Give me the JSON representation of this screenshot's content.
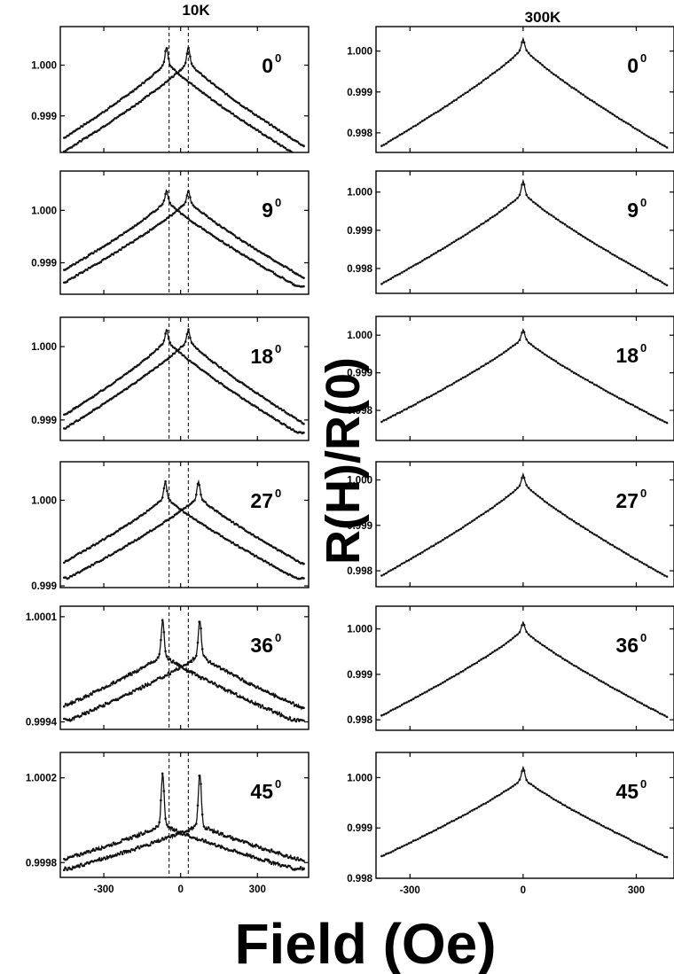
{
  "figure": {
    "xlabel": "Field (Oe)",
    "ylabel": "R(H)/R(0)"
  },
  "chart_data": [
    {
      "type": "line",
      "column_title": "10K",
      "angle": "0",
      "angle_sup": "0",
      "ylim": [
        0.99828,
        1.00076
      ],
      "yticks": [
        0.999,
        1.0
      ],
      "ytick_labels": [
        "0.999",
        "1.000"
      ],
      "xlim": [
        -470,
        500
      ],
      "xticks": [
        -300,
        0,
        300
      ],
      "xtick_labels": [],
      "peak_fields": [
        -55,
        30
      ],
      "base": 0.9983,
      "top": 1.00008,
      "peak_height": 1.0004,
      "dashed_lines": [
        -45,
        30
      ]
    },
    {
      "type": "line",
      "column_title": "10K",
      "angle": "9",
      "angle_sup": "0",
      "ylim": [
        0.9984,
        1.00075
      ],
      "yticks": [
        0.999,
        1.0
      ],
      "ytick_labels": [
        "0.999",
        "1.000"
      ],
      "xlim": [
        -470,
        500
      ],
      "xticks": [
        -300,
        0,
        300
      ],
      "xtick_labels": [],
      "peak_fields": [
        -55,
        30
      ],
      "base": 0.99862,
      "top": 1.0002,
      "peak_height": 1.0004,
      "dashed_lines": [
        -45,
        30
      ]
    },
    {
      "type": "line",
      "column_title": "10K",
      "angle": "18",
      "angle_sup": "0",
      "ylim": [
        0.99872,
        1.0004
      ],
      "yticks": [
        0.999,
        1.0
      ],
      "ytick_labels": [
        "0.999",
        "1.000"
      ],
      "xlim": [
        -470,
        500
      ],
      "xticks": [
        -300,
        0,
        300
      ],
      "xtick_labels": [],
      "peak_fields": [
        -55,
        30
      ],
      "base": 0.99888,
      "top": 1.0001,
      "peak_height": 1.00025,
      "dashed_lines": [
        -45,
        30
      ]
    },
    {
      "type": "line",
      "column_title": "10K",
      "angle": "27",
      "angle_sup": "0",
      "ylim": [
        0.99898,
        1.00045
      ],
      "yticks": [
        0.999,
        1.0
      ],
      "ytick_labels": [
        "0.999",
        "1.000"
      ],
      "xlim": [
        -470,
        500
      ],
      "xticks": [
        -300,
        0,
        300
      ],
      "xtick_labels": [],
      "peak_fields": [
        -60,
        70
      ],
      "base": 0.99913,
      "top": 1.00005,
      "peak_height": 1.00024,
      "dashed_lines": [
        -45,
        30
      ]
    },
    {
      "type": "line",
      "column_title": "10K",
      "angle": "36",
      "angle_sup": "0",
      "ylim": [
        0.99935,
        1.00017
      ],
      "yticks": [
        0.9994,
        1.0001
      ],
      "ytick_labels": [
        "0.9994",
        "1.0001"
      ],
      "xlim": [
        -470,
        500
      ],
      "xticks": [
        -300,
        0,
        300
      ],
      "xtick_labels": [],
      "peak_fields": [
        -70,
        75
      ],
      "base": 0.99943,
      "top": 0.99985,
      "peak_height": 1.0001,
      "dashed_lines": [
        -45,
        30
      ]
    },
    {
      "type": "line",
      "column_title": "10K",
      "angle": "45",
      "angle_sup": "0",
      "ylim": [
        0.99973,
        1.00032
      ],
      "yticks": [
        0.9998,
        1.0002
      ],
      "ytick_labels": [
        "0.9998",
        "1.0002"
      ],
      "xlim": [
        -470,
        500
      ],
      "xticks": [
        -300,
        0,
        300
      ],
      "xtick_labels": [
        "-300",
        "0",
        "300"
      ],
      "peak_fields": [
        -70,
        75
      ],
      "base": 0.99978,
      "top": 0.99998,
      "peak_height": 1.00025,
      "dashed_lines": [
        -45,
        30
      ]
    },
    {
      "type": "line",
      "column_title": "300K",
      "angle": "0",
      "angle_sup": "0",
      "ylim": [
        0.99752,
        1.0006
      ],
      "yticks": [
        0.998,
        0.999,
        1.0
      ],
      "ytick_labels": [
        "0.998",
        "0.999",
        "1.000"
      ],
      "xlim": [
        -390,
        400
      ],
      "xticks": [
        -300,
        0,
        300
      ],
      "xtick_labels": [],
      "peak_fields": [
        0
      ],
      "base": 0.99762,
      "top": 1.0001,
      "peak_height": 1.0003
    },
    {
      "type": "line",
      "column_title": "300K",
      "angle": "9",
      "angle_sup": "0",
      "ylim": [
        0.99735,
        1.00055
      ],
      "yticks": [
        0.998,
        0.999,
        1.0
      ],
      "ytick_labels": [
        "0.998",
        "0.999",
        "1.000"
      ],
      "xlim": [
        -390,
        400
      ],
      "xticks": [
        -300,
        0,
        300
      ],
      "xtick_labels": [],
      "peak_fields": [
        0
      ],
      "base": 0.99755,
      "top": 1.0,
      "peak_height": 1.0003
    },
    {
      "type": "line",
      "column_title": "300K",
      "angle": "18",
      "angle_sup": "0",
      "ylim": [
        0.9972,
        1.0005
      ],
      "yticks": [
        0.998,
        0.999,
        1.0
      ],
      "ytick_labels": [
        "0.998",
        "0.999",
        "1.000"
      ],
      "xlim": [
        -390,
        400
      ],
      "xticks": [
        -300,
        0,
        300
      ],
      "xtick_labels": [],
      "peak_fields": [
        0
      ],
      "base": 0.99765,
      "top": 0.99995,
      "peak_height": 1.00015
    },
    {
      "type": "line",
      "column_title": "300K",
      "angle": "27",
      "angle_sup": "0",
      "ylim": [
        0.99765,
        1.0004
      ],
      "yticks": [
        0.998,
        0.999,
        1.0
      ],
      "ytick_labels": [
        "0.998",
        "0.999",
        "1.000"
      ],
      "xlim": [
        -390,
        400
      ],
      "xticks": [
        -300,
        0,
        300
      ],
      "xtick_labels": [],
      "peak_fields": [
        0
      ],
      "base": 0.99785,
      "top": 0.99995,
      "peak_height": 1.00012
    },
    {
      "type": "line",
      "column_title": "300K",
      "angle": "36",
      "angle_sup": "0",
      "ylim": [
        0.99777,
        1.0005
      ],
      "yticks": [
        0.998,
        0.999,
        1.0
      ],
      "ytick_labels": [
        "0.998",
        "0.999",
        "1.000"
      ],
      "xlim": [
        -390,
        400
      ],
      "xticks": [
        -300,
        0,
        300
      ],
      "xtick_labels": [],
      "peak_fields": [
        0
      ],
      "base": 0.99805,
      "top": 1.0,
      "peak_height": 1.00015
    },
    {
      "type": "line",
      "column_title": "300K",
      "angle": "45",
      "angle_sup": "0",
      "ylim": [
        0.998,
        1.0005
      ],
      "yticks": [
        0.998,
        0.999,
        1.0
      ],
      "ytick_labels": [
        "0.998",
        "0.999",
        "1.000"
      ],
      "xlim": [
        -390,
        400
      ],
      "xticks": [
        -300,
        0,
        300
      ],
      "xtick_labels": [
        "-300",
        "0",
        "300"
      ],
      "peak_fields": [
        0
      ],
      "base": 0.9984,
      "top": 1.0,
      "peak_height": 1.0002
    }
  ]
}
